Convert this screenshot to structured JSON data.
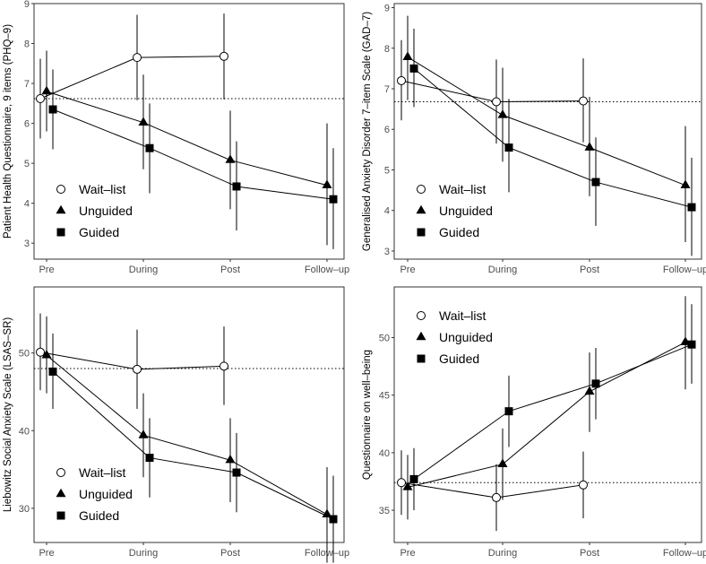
{
  "chart_data": [
    {
      "type": "line",
      "ylabel": "Patient Health Questionnaire, 9 items (PHQ–9)",
      "categories": [
        "Pre",
        "During",
        "Post",
        "Follow–up"
      ],
      "ylim": [
        2.6,
        9.0
      ],
      "yticks": [
        3,
        4,
        5,
        6,
        7,
        8,
        9
      ],
      "reference": 6.62,
      "legend": "bottom-left",
      "series": [
        {
          "name": "Wait–list",
          "marker": "open-circle",
          "values": [
            6.62,
            7.65,
            7.68,
            null
          ],
          "err_low": [
            5.62,
            6.58,
            6.6,
            null
          ],
          "err_high": [
            7.62,
            8.72,
            8.75,
            null
          ]
        },
        {
          "name": "Unguided",
          "marker": "triangle",
          "values": [
            6.8,
            6.02,
            5.08,
            4.45
          ],
          "err_low": [
            5.8,
            4.85,
            3.85,
            2.95
          ],
          "err_high": [
            7.82,
            7.22,
            6.32,
            6.0
          ]
        },
        {
          "name": "Guided",
          "marker": "square",
          "values": [
            6.35,
            5.38,
            4.42,
            4.1
          ],
          "err_low": [
            5.35,
            4.25,
            3.32,
            2.85
          ],
          "err_high": [
            7.35,
            6.5,
            5.55,
            5.38
          ]
        }
      ]
    },
    {
      "type": "line",
      "ylabel": "Generalised Anxiety Disorder 7–item Scale (GAD–7)",
      "categories": [
        "Pre",
        "During",
        "Post",
        "Follow–up"
      ],
      "ylim": [
        2.8,
        9.1
      ],
      "yticks": [
        3,
        4,
        5,
        6,
        7,
        8,
        9
      ],
      "reference": 6.68,
      "legend": "bottom-left",
      "series": [
        {
          "name": "Wait–list",
          "marker": "open-circle",
          "values": [
            7.2,
            6.68,
            6.7,
            null
          ],
          "err_low": [
            6.22,
            5.65,
            5.68,
            null
          ],
          "err_high": [
            8.2,
            7.72,
            7.75,
            null
          ]
        },
        {
          "name": "Unguided",
          "marker": "triangle",
          "values": [
            7.78,
            6.35,
            5.55,
            4.62
          ],
          "err_low": [
            6.72,
            5.2,
            4.35,
            3.22
          ],
          "err_high": [
            8.8,
            7.52,
            6.8,
            6.08
          ]
        },
        {
          "name": "Guided",
          "marker": "square",
          "values": [
            7.5,
            5.55,
            4.7,
            4.08
          ],
          "err_low": [
            6.55,
            4.45,
            3.62,
            2.88
          ],
          "err_high": [
            8.48,
            6.75,
            5.8,
            5.3
          ]
        }
      ]
    },
    {
      "type": "line",
      "ylabel": "Liebowitz Social Anxiety Scale (LSAS–SR)",
      "categories": [
        "Pre",
        "During",
        "Post",
        "Follow–up"
      ],
      "ylim": [
        25.6,
        58.5
      ],
      "yticks": [
        30,
        40,
        50
      ],
      "reference": 48.0,
      "legend": "bottom-left",
      "series": [
        {
          "name": "Wait–list",
          "marker": "open-circle",
          "values": [
            50.1,
            47.9,
            48.3,
            null
          ],
          "err_low": [
            45.2,
            42.8,
            43.3,
            null
          ],
          "err_high": [
            55.1,
            53.0,
            53.4,
            null
          ]
        },
        {
          "name": "Unguided",
          "marker": "triangle",
          "values": [
            49.7,
            39.4,
            36.2,
            29.2
          ],
          "err_low": [
            44.8,
            34.0,
            30.8,
            23.0
          ],
          "err_high": [
            54.7,
            44.8,
            41.6,
            35.3
          ]
        },
        {
          "name": "Guided",
          "marker": "square",
          "values": [
            47.6,
            36.5,
            34.6,
            28.6
          ],
          "err_low": [
            42.8,
            31.4,
            29.5,
            23.0
          ],
          "err_high": [
            52.5,
            41.6,
            39.7,
            34.2
          ]
        }
      ]
    },
    {
      "type": "line",
      "ylabel": "Questionnaire on well–being",
      "categories": [
        "Pre",
        "During",
        "Post",
        "Follow–up"
      ],
      "ylim": [
        32.2,
        54.4
      ],
      "yticks": [
        35,
        40,
        45,
        50
      ],
      "reference": 37.4,
      "legend": "top-left",
      "series": [
        {
          "name": "Wait–list",
          "marker": "open-circle",
          "values": [
            37.4,
            36.1,
            37.2,
            null
          ],
          "err_low": [
            34.6,
            33.2,
            34.3,
            null
          ],
          "err_high": [
            40.2,
            39.0,
            40.1,
            null
          ]
        },
        {
          "name": "Unguided",
          "marker": "triangle",
          "values": [
            37.0,
            39.0,
            45.3,
            49.6
          ],
          "err_low": [
            34.2,
            35.9,
            41.8,
            45.5
          ],
          "err_high": [
            39.8,
            42.1,
            48.7,
            53.6
          ]
        },
        {
          "name": "Guided",
          "marker": "square",
          "values": [
            37.7,
            43.6,
            46.0,
            49.4
          ],
          "err_low": [
            35.0,
            40.5,
            42.9,
            46.0
          ],
          "err_high": [
            40.4,
            46.7,
            49.1,
            52.9
          ]
        }
      ]
    }
  ]
}
